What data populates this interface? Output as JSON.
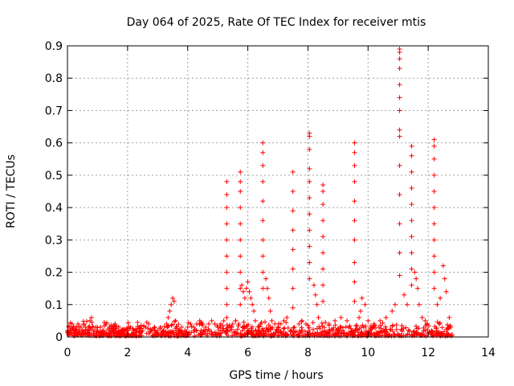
{
  "chart_data": {
    "type": "scatter",
    "title": "Day 064 of 2025, Rate Of TEC Index for receiver mtis",
    "xlabel": "GPS time / hours",
    "ylabel": "ROTI / TECUs",
    "xlim": [
      0,
      14
    ],
    "ylim": [
      0,
      0.9
    ],
    "x_ticks": [
      "0",
      "2",
      "4",
      "6",
      "8",
      "10",
      "12",
      "14"
    ],
    "y_ticks": [
      "0",
      "0.1",
      "0.2",
      "0.3",
      "0.4",
      "0.5",
      "0.6",
      "0.7",
      "0.8",
      "0.9"
    ],
    "grid": true,
    "marker": "+",
    "series": [
      {
        "name": "ROTI",
        "color": "#ff0000",
        "x": [
          0.0,
          0.05,
          0.1,
          0.15,
          0.2,
          0.25,
          0.3,
          0.35,
          0.4,
          0.45,
          0.5,
          0.55,
          0.6,
          0.65,
          0.7,
          0.75,
          0.8,
          0.85,
          0.9,
          0.95,
          1.0,
          1.1,
          1.2,
          1.3,
          1.4,
          1.5,
          1.6,
          1.7,
          1.8,
          1.9,
          2.0,
          2.1,
          2.2,
          2.3,
          2.4,
          2.5,
          2.6,
          2.7,
          2.8,
          2.9,
          3.0,
          3.1,
          3.2,
          3.3,
          3.35,
          3.4,
          3.45,
          3.5,
          3.55,
          3.6,
          3.7,
          3.8,
          3.9,
          4.0,
          4.1,
          4.2,
          4.3,
          4.4,
          4.5,
          4.6,
          4.7,
          4.8,
          4.9,
          5.0,
          5.1,
          5.2,
          5.3,
          5.3,
          5.3,
          5.3,
          5.3,
          5.3,
          5.3,
          5.3,
          5.3,
          5.3,
          5.4,
          5.5,
          5.6,
          5.7,
          5.75,
          5.75,
          5.75,
          5.75,
          5.75,
          5.75,
          5.75,
          5.75,
          5.75,
          5.75,
          5.8,
          5.85,
          5.9,
          5.95,
          6.0,
          6.05,
          6.1,
          6.15,
          6.2,
          6.25,
          6.5,
          6.5,
          6.5,
          6.5,
          6.5,
          6.5,
          6.5,
          6.5,
          6.5,
          6.5,
          6.6,
          6.65,
          6.7,
          6.75,
          6.8,
          6.9,
          7.0,
          7.1,
          7.2,
          7.3,
          7.5,
          7.5,
          7.5,
          7.5,
          7.5,
          7.5,
          7.5,
          7.5,
          7.7,
          7.8,
          8.05,
          8.05,
          8.05,
          8.05,
          8.05,
          8.05,
          8.05,
          8.05,
          8.05,
          8.05,
          8.05,
          8.2,
          8.25,
          8.3,
          8.35,
          8.5,
          8.5,
          8.5,
          8.5,
          8.5,
          8.5,
          8.5,
          8.5,
          8.5,
          8.7,
          8.9,
          9.1,
          9.3,
          9.55,
          9.55,
          9.55,
          9.55,
          9.55,
          9.55,
          9.55,
          9.55,
          9.55,
          9.55,
          9.7,
          9.75,
          9.8,
          9.9,
          10.0,
          10.2,
          10.4,
          10.6,
          10.8,
          10.9,
          11.05,
          11.05,
          11.05,
          11.05,
          11.05,
          11.05,
          11.05,
          11.05,
          11.05,
          11.05,
          11.05,
          11.05,
          11.05,
          11.05,
          11.2,
          11.3,
          11.45,
          11.45,
          11.45,
          11.45,
          11.45,
          11.45,
          11.45,
          11.45,
          11.45,
          11.45,
          11.55,
          11.6,
          11.65,
          11.7,
          11.8,
          11.9,
          12.2,
          12.2,
          12.2,
          12.2,
          12.2,
          12.2,
          12.2,
          12.2,
          12.2,
          12.2,
          12.2,
          12.3,
          12.4,
          12.5,
          12.55,
          12.6,
          12.7,
          12.75
        ],
        "y": [
          0.02,
          0.03,
          0.02,
          0.04,
          0.03,
          0.02,
          0.03,
          0.04,
          0.02,
          0.03,
          0.02,
          0.04,
          0.03,
          0.02,
          0.03,
          0.05,
          0.06,
          0.03,
          0.02,
          0.03,
          0.02,
          0.03,
          0.02,
          0.01,
          0.02,
          0.02,
          0.03,
          0.02,
          0.01,
          0.02,
          0.02,
          0.03,
          0.02,
          0.02,
          0.03,
          0.02,
          0.03,
          0.04,
          0.02,
          0.03,
          0.02,
          0.03,
          0.02,
          0.04,
          0.06,
          0.08,
          0.1,
          0.12,
          0.11,
          0.05,
          0.02,
          0.03,
          0.02,
          0.03,
          0.04,
          0.03,
          0.04,
          0.05,
          0.04,
          0.03,
          0.04,
          0.05,
          0.04,
          0.03,
          0.04,
          0.05,
          0.48,
          0.44,
          0.4,
          0.35,
          0.3,
          0.25,
          0.2,
          0.15,
          0.1,
          0.06,
          0.03,
          0.04,
          0.05,
          0.04,
          0.51,
          0.48,
          0.45,
          0.4,
          0.35,
          0.3,
          0.25,
          0.2,
          0.15,
          0.1,
          0.16,
          0.14,
          0.12,
          0.15,
          0.17,
          0.14,
          0.12,
          0.1,
          0.08,
          0.05,
          0.6,
          0.57,
          0.53,
          0.48,
          0.42,
          0.36,
          0.3,
          0.25,
          0.2,
          0.15,
          0.18,
          0.15,
          0.12,
          0.08,
          0.05,
          0.04,
          0.03,
          0.04,
          0.05,
          0.06,
          0.51,
          0.45,
          0.39,
          0.33,
          0.27,
          0.21,
          0.15,
          0.09,
          0.04,
          0.05,
          0.63,
          0.62,
          0.58,
          0.52,
          0.48,
          0.43,
          0.38,
          0.33,
          0.28,
          0.23,
          0.18,
          0.16,
          0.13,
          0.1,
          0.06,
          0.47,
          0.45,
          0.41,
          0.36,
          0.31,
          0.26,
          0.21,
          0.16,
          0.11,
          0.04,
          0.05,
          0.06,
          0.05,
          0.6,
          0.57,
          0.53,
          0.48,
          0.42,
          0.36,
          0.3,
          0.23,
          0.17,
          0.11,
          0.06,
          0.08,
          0.12,
          0.1,
          0.05,
          0.04,
          0.05,
          0.06,
          0.08,
          0.1,
          0.89,
          0.88,
          0.86,
          0.83,
          0.78,
          0.74,
          0.7,
          0.64,
          0.62,
          0.53,
          0.44,
          0.35,
          0.26,
          0.19,
          0.13,
          0.1,
          0.59,
          0.56,
          0.51,
          0.46,
          0.41,
          0.36,
          0.31,
          0.26,
          0.21,
          0.16,
          0.2,
          0.18,
          0.15,
          0.1,
          0.06,
          0.05,
          0.61,
          0.59,
          0.55,
          0.5,
          0.45,
          0.4,
          0.35,
          0.3,
          0.25,
          0.2,
          0.15,
          0.1,
          0.12,
          0.22,
          0.18,
          0.14,
          0.06,
          0.03
        ]
      }
    ]
  }
}
